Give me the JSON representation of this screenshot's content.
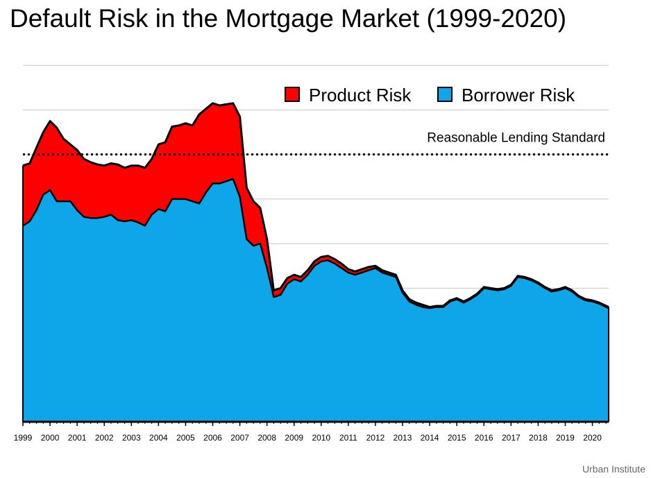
{
  "title": "Default Risk in the Mortgage Market (1999-2020)",
  "source": "Urban Institute",
  "colors": {
    "product": "#ff0000",
    "borrower": "#0ea5e9",
    "outline": "#000000",
    "grid": "#c8c8c8"
  },
  "chart_data": {
    "type": "area",
    "title": "Default Risk in the Mortgage Market (1999-2020)",
    "xlabel": "",
    "ylabel": "",
    "x_tick_labels": [
      "1999",
      "2000",
      "2001",
      "2002",
      "2003",
      "2004",
      "2005",
      "2006",
      "2007",
      "2008",
      "2009",
      "2010",
      "2011",
      "2012",
      "2013",
      "2014",
      "2015",
      "2016",
      "2017",
      "2018",
      "2019",
      "2020"
    ],
    "xlim": [
      1999,
      2020.6
    ],
    "ylim": [
      0,
      18
    ],
    "grid": true,
    "stacked": true,
    "legend_placement": "top-right",
    "x": [
      1999.0,
      1999.25,
      1999.5,
      1999.75,
      2000.0,
      2000.25,
      2000.5,
      2000.75,
      2001.0,
      2001.25,
      2001.5,
      2001.75,
      2002.0,
      2002.25,
      2002.5,
      2002.75,
      2003.0,
      2003.25,
      2003.5,
      2003.75,
      2004.0,
      2004.25,
      2004.5,
      2004.75,
      2005.0,
      2005.25,
      2005.5,
      2005.75,
      2006.0,
      2006.25,
      2006.5,
      2006.75,
      2007.0,
      2007.25,
      2007.5,
      2007.75,
      2008.0,
      2008.25,
      2008.5,
      2008.75,
      2009.0,
      2009.25,
      2009.5,
      2009.75,
      2010.0,
      2010.25,
      2010.5,
      2010.75,
      2011.0,
      2011.25,
      2011.5,
      2011.75,
      2012.0,
      2012.25,
      2012.5,
      2012.75,
      2013.0,
      2013.25,
      2013.5,
      2013.75,
      2014.0,
      2014.25,
      2014.5,
      2014.75,
      2015.0,
      2015.25,
      2015.5,
      2015.75,
      2016.0,
      2016.25,
      2016.5,
      2016.75,
      2017.0,
      2017.25,
      2017.5,
      2017.75,
      2018.0,
      2018.25,
      2018.5,
      2018.75,
      2019.0,
      2019.25,
      2019.5,
      2019.75,
      2020.0,
      2020.25,
      2020.6
    ],
    "series": [
      {
        "name": "Borrower Risk",
        "color": "#0ea5e9",
        "values": [
          8.8,
          9.0,
          9.5,
          10.2,
          10.4,
          9.9,
          9.9,
          9.9,
          9.5,
          9.2,
          9.15,
          9.15,
          9.2,
          9.3,
          9.05,
          9.0,
          9.05,
          8.95,
          8.8,
          9.3,
          9.55,
          9.45,
          10.0,
          10.0,
          10.0,
          9.9,
          9.8,
          10.3,
          10.7,
          10.7,
          10.8,
          10.9,
          10.1,
          8.2,
          7.9,
          8.0,
          6.9,
          5.6,
          5.7,
          6.2,
          6.4,
          6.3,
          6.6,
          7.0,
          7.2,
          7.25,
          7.1,
          6.9,
          6.7,
          6.6,
          6.7,
          6.8,
          6.9,
          6.7,
          6.6,
          6.5,
          5.8,
          5.4,
          5.25,
          5.15,
          5.1,
          5.15,
          5.15,
          5.4,
          5.5,
          5.35,
          5.5,
          5.7,
          6.0,
          5.95,
          5.9,
          5.95,
          6.1,
          6.5,
          6.45,
          6.35,
          6.2,
          6.0,
          5.85,
          5.9,
          6.0,
          5.85,
          5.6,
          5.45,
          5.4,
          5.3,
          5.1
        ]
      },
      {
        "name": "Product Risk",
        "color": "#ff0000",
        "values": [
          2.7,
          2.6,
          2.8,
          2.8,
          3.1,
          3.3,
          2.8,
          2.55,
          2.7,
          2.6,
          2.5,
          2.4,
          2.3,
          2.3,
          2.5,
          2.4,
          2.45,
          2.55,
          2.6,
          2.5,
          2.9,
          3.1,
          3.25,
          3.3,
          3.4,
          3.4,
          4.0,
          3.75,
          3.6,
          3.5,
          3.45,
          3.4,
          3.6,
          2.3,
          2.0,
          1.6,
          1.3,
          0.3,
          0.3,
          0.25,
          0.2,
          0.2,
          0.2,
          0.2,
          0.2,
          0.2,
          0.2,
          0.2,
          0.15,
          0.15,
          0.15,
          0.15,
          0.1,
          0.1,
          0.1,
          0.1,
          0.1,
          0.1,
          0.1,
          0.1,
          0.05,
          0.05,
          0.05,
          0.05,
          0.05,
          0.05,
          0.05,
          0.05,
          0.05,
          0.05,
          0.05,
          0.05,
          0.05,
          0.05,
          0.05,
          0.05,
          0.05,
          0.05,
          0.05,
          0.05,
          0.05,
          0.05,
          0.05,
          0.05,
          0.05,
          0.05,
          0.05
        ]
      }
    ],
    "reference_line": {
      "label": "Reasonable Lending Standard",
      "value": 12,
      "style": "dotted"
    }
  }
}
